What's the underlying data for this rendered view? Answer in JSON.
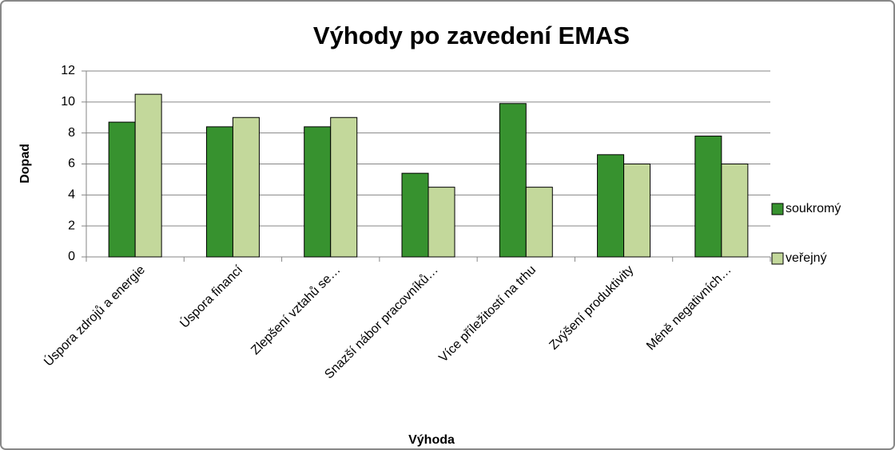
{
  "chart_data": {
    "type": "bar",
    "title": "Výhody po zavedení EMAS",
    "x_label": "Výhoda",
    "y_label": "Dopad",
    "categories": [
      "Úspora zdrojů a energie",
      "Úspora financí",
      "Zlepšení vztahů se…",
      "Snazší nábor pracovníků…",
      "Více příležitostí na trhu",
      "Zvýšení produktivity",
      "Méně negativních…"
    ],
    "series": [
      {
        "name": "soukromý",
        "color": "#37922f",
        "values": [
          8.7,
          8.4,
          8.4,
          5.4,
          9.9,
          6.6,
          7.8
        ]
      },
      {
        "name": "veřejný",
        "color": "#c3d89b",
        "values": [
          10.5,
          9,
          9,
          4.5,
          4.5,
          6,
          6
        ]
      }
    ],
    "ylim": [
      0,
      12
    ],
    "yticks": [
      0,
      2,
      4,
      6,
      8,
      10,
      12
    ],
    "grid": true,
    "legend": "right"
  }
}
